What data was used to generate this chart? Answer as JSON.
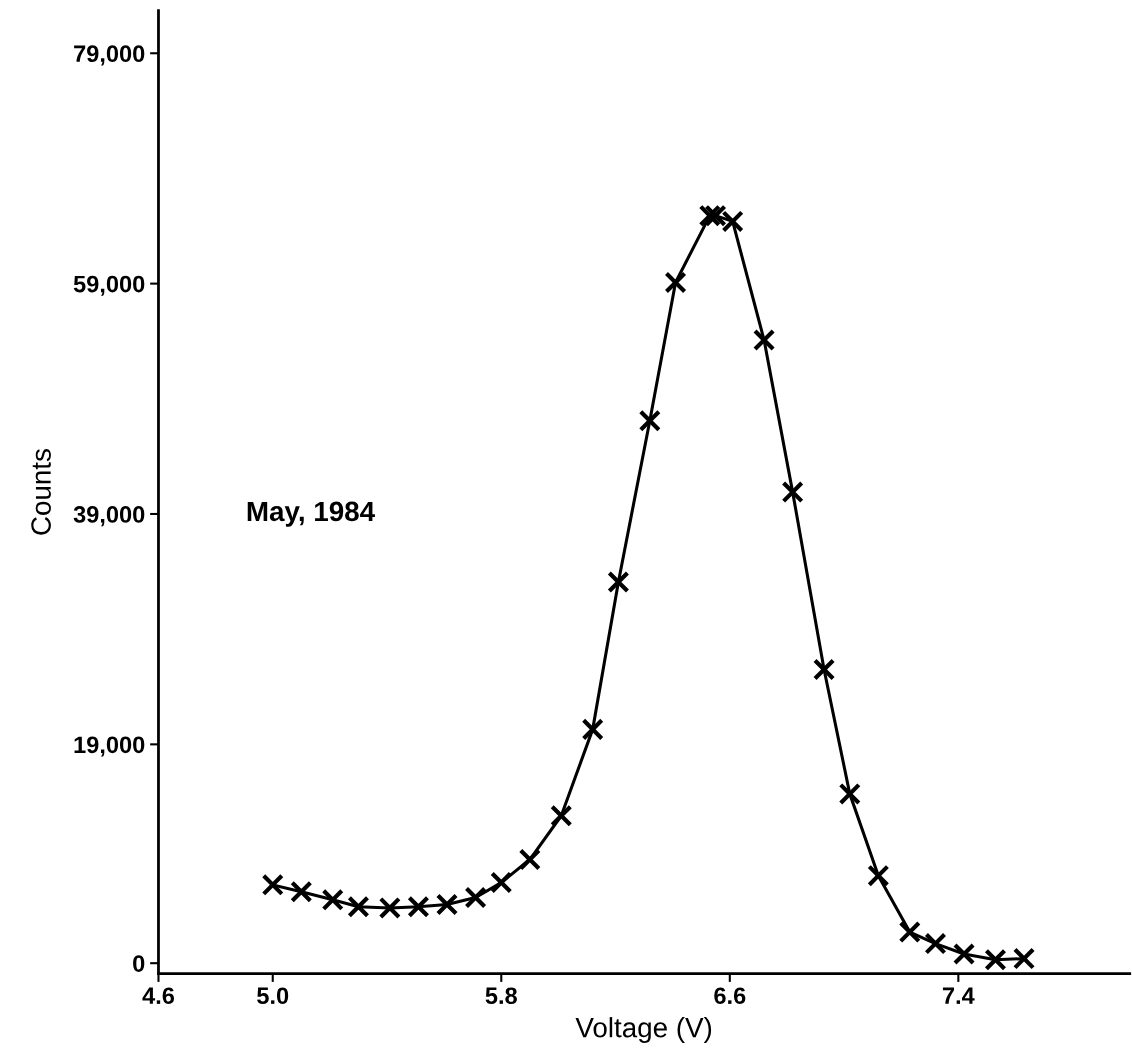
{
  "chart_data": {
    "type": "line",
    "xlabel": "Voltage (V)",
    "ylabel": "Counts",
    "annotations": [
      "May, 1984"
    ],
    "x": [
      5.0,
      5.1,
      5.21,
      5.3,
      5.41,
      5.51,
      5.61,
      5.71,
      5.8,
      5.9,
      6.01,
      6.12,
      6.21,
      6.32,
      6.41,
      6.53,
      6.55,
      6.61,
      6.72,
      6.82,
      6.93,
      7.02,
      7.12,
      7.23,
      7.32,
      7.42,
      7.53,
      7.63
    ],
    "series": [
      {
        "color": "#000000",
        "values": [
          6800,
          6200,
          5500,
          4900,
          4800,
          4900,
          5100,
          5700,
          7000,
          9000,
          12800,
          20300,
          33100,
          47100,
          59100,
          64900,
          64900,
          64400,
          54100,
          40900,
          25500,
          14700,
          7600,
          2700,
          1700,
          800,
          300,
          400
        ]
      }
    ],
    "xlim": [
      4.6,
      8.0
    ],
    "ylim": [
      -900,
      82700
    ],
    "xticks": [
      4.6,
      {
        "value": 5.0,
        "label": "5.0"
      },
      5.8,
      6.6,
      7.4
    ],
    "yticks": [
      0,
      {
        "value": 19000,
        "label": "19,000"
      },
      {
        "value": 39000,
        "label": "39,000"
      },
      {
        "value": 59000,
        "label": "59,000"
      },
      {
        "value": 79000,
        "label": "79,000"
      }
    ],
    "marker": "cross",
    "line_style": "solid",
    "grid": false
  }
}
